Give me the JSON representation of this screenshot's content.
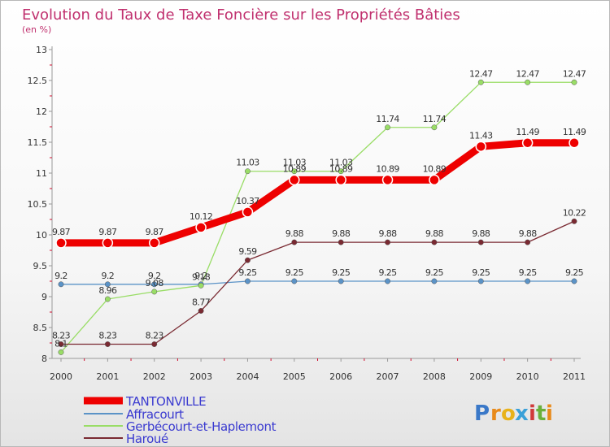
{
  "chart_data": {
    "type": "line",
    "title": "Evolution du Taux de Taxe Foncière sur les Propriétés Bâties",
    "subtitle": "(en %)",
    "xlabel": "",
    "ylabel": "",
    "x": [
      "2000",
      "2001",
      "2002",
      "2003",
      "2004",
      "2005",
      "2006",
      "2007",
      "2008",
      "2009",
      "2010",
      "2011"
    ],
    "ylim": [
      8,
      13
    ],
    "yticks": [
      "8",
      "8.5",
      "9",
      "9.5",
      "10",
      "10.5",
      "11",
      "11.5",
      "12",
      "12.5",
      "13"
    ],
    "grid": false,
    "legend_position": "bottom-left",
    "series": [
      {
        "name": "TANTONVILLE",
        "color": "#ee0000",
        "values": [
          9.87,
          9.87,
          9.87,
          10.12,
          10.37,
          10.89,
          10.89,
          10.89,
          10.89,
          11.43,
          11.49,
          11.49
        ],
        "labels": [
          "9.87",
          "9.87",
          "9.87",
          "10.12",
          "10.37",
          "10.89",
          "10.89",
          "10.89",
          "10.89",
          "11.43",
          "11.49",
          "11.49"
        ]
      },
      {
        "name": "Affracourt",
        "color": "#5b93c7",
        "values": [
          9.2,
          9.2,
          9.2,
          9.2,
          9.25,
          9.25,
          9.25,
          9.25,
          9.25,
          9.25,
          9.25,
          9.25
        ],
        "labels": [
          "9.2",
          "9.2",
          "9.2",
          "9.2",
          "9.25",
          "9.25",
          "9.25",
          "9.25",
          "9.25",
          "9.25",
          "9.25",
          "9.25"
        ]
      },
      {
        "name": "Gerbécourt-et-Haplemont",
        "color": "#99dd66",
        "values": [
          8.1,
          8.96,
          9.08,
          9.18,
          11.03,
          11.03,
          11.03,
          11.74,
          11.74,
          12.47,
          12.47,
          12.47
        ],
        "labels": [
          "8.1",
          "8.96",
          "9.08",
          "9.18",
          "11.03",
          "11.03",
          "11.03",
          "11.74",
          "11.74",
          "12.47",
          "12.47",
          "12.47"
        ]
      },
      {
        "name": "Haroué",
        "color": "#7a2a32",
        "values": [
          8.23,
          8.23,
          8.23,
          8.77,
          9.59,
          9.88,
          9.88,
          9.88,
          9.88,
          9.88,
          9.88,
          10.22
        ],
        "labels": [
          "8.23",
          "8.23",
          "8.23",
          "8.77",
          "9.59",
          "9.88",
          "9.88",
          "9.88",
          "9.88",
          "9.88",
          "9.88",
          "10.22"
        ]
      }
    ]
  },
  "logo": {
    "text": "Proxiti",
    "letters": [
      "P",
      "r",
      "o",
      "x",
      "i",
      "t",
      "i"
    ],
    "colors": [
      "#3a78c8",
      "#e88a1a",
      "#e8b21a",
      "#3aa0d8",
      "#d03a3a",
      "#6ab03a",
      "#e88a1a"
    ]
  }
}
